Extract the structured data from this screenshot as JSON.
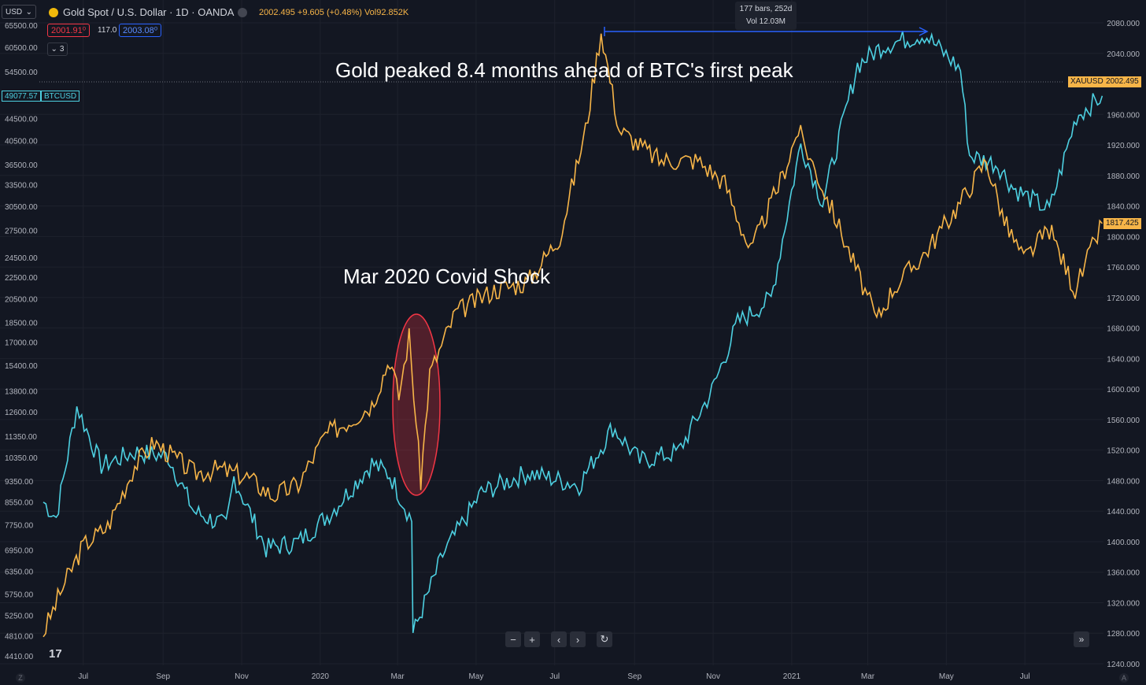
{
  "header": {
    "currency": "USD",
    "title": "Gold Spot / U.S. Dollar · 1D · OANDA",
    "quote": "2002.495 +9.605 (+0.48%) Vol92.852K",
    "sell_price": "2001.91⁰",
    "spread": "117.0",
    "buy_price": "2003.08⁰",
    "indicators_count": "3"
  },
  "annotations": {
    "peak_text": "Gold peaked 8.4 months ahead of BTC's first peak",
    "covid_text": "Mar 2020 Covid Shock",
    "measure_bars": "177 bars, 252d",
    "measure_vol": "Vol 12.03M"
  },
  "tags": {
    "btc_value": "49077.57",
    "btc_symbol": "BTCUSD",
    "xau_symbol": "XAUUSD",
    "xau_value": "2002.495",
    "last_value": "1817.425"
  },
  "colors": {
    "gold": "#f7b548",
    "btc": "#4dd0e1",
    "measure": "#2962ff",
    "highlight": "#f23645"
  },
  "nav_icons": [
    "minus-icon",
    "plus-icon",
    "chevron-left-icon",
    "chevron-right-icon",
    "reset-icon"
  ],
  "chart_data": {
    "type": "line",
    "title": "",
    "x_ticks": [
      "Jul",
      "Sep",
      "Nov",
      "2020",
      "Mar",
      "May",
      "Jul",
      "Sep",
      "Nov",
      "2021",
      "Mar",
      "May",
      "Jul"
    ],
    "left_axis": {
      "label": "",
      "scale": "log",
      "ticks": [
        "65500.00",
        "60500.00",
        "54500.00",
        "44500.00",
        "40500.00",
        "36500.00",
        "33500.00",
        "30500.00",
        "27500.00",
        "24500.00",
        "22500.00",
        "20500.00",
        "18500.00",
        "17000.00",
        "15400.00",
        "13800.00",
        "12600.00",
        "11350.00",
        "10350.00",
        "9350.00",
        "8550.00",
        "7750.00",
        "6950.00",
        "6350.00",
        "5750.00",
        "5250.00",
        "4810.00",
        "4410.00"
      ]
    },
    "right_axis": {
      "label": "",
      "ticks": [
        "2080.000",
        "2040.000",
        "1960.000",
        "1920.000",
        "1880.000",
        "1840.000",
        "1800.000",
        "1760.000",
        "1720.000",
        "1680.000",
        "1640.000",
        "1600.000",
        "1560.000",
        "1520.000",
        "1480.000",
        "1440.000",
        "1400.000",
        "1360.000",
        "1320.000",
        "1280.000",
        "1240.000"
      ],
      "ylim": [
        1240,
        2100
      ]
    },
    "series": [
      {
        "name": "XAUUSD",
        "axis": "right",
        "x": [
          "2019-05-31",
          "2019-06-15",
          "2019-07-01",
          "2019-07-20",
          "2019-08-10",
          "2019-08-25",
          "2019-09-10",
          "2019-09-25",
          "2019-10-15",
          "2019-11-05",
          "2019-11-25",
          "2019-12-15",
          "2020-01-05",
          "2020-01-25",
          "2020-02-10",
          "2020-02-24",
          "2020-03-02",
          "2020-03-10",
          "2020-03-19",
          "2020-03-26",
          "2020-04-15",
          "2020-05-15",
          "2020-06-10",
          "2020-07-05",
          "2020-07-25",
          "2020-08-06",
          "2020-08-20",
          "2020-09-20",
          "2020-10-20",
          "2020-11-10",
          "2020-11-30",
          "2020-12-25",
          "2021-01-06",
          "2021-02-05",
          "2021-03-08",
          "2021-03-20",
          "2021-04-15",
          "2021-05-10",
          "2021-06-01",
          "2021-06-15",
          "2021-06-30",
          "2021-07-20",
          "2021-08-09",
          "2021-08-30"
        ],
        "values": [
          1280,
          1340,
          1395,
          1420,
          1500,
          1530,
          1510,
          1490,
          1495,
          1485,
          1460,
          1475,
          1540,
          1560,
          1580,
          1640,
          1590,
          1670,
          1480,
          1620,
          1700,
          1730,
          1740,
          1800,
          1940,
          2070,
          1940,
          1900,
          1900,
          1870,
          1780,
          1880,
          1940,
          1820,
          1690,
          1730,
          1780,
          1840,
          1900,
          1820,
          1770,
          1810,
          1730,
          1817
        ]
      },
      {
        "name": "BTCUSD",
        "axis": "left",
        "x": [
          "2019-05-31",
          "2019-06-10",
          "2019-06-26",
          "2019-07-15",
          "2019-08-10",
          "2019-09-05",
          "2019-09-25",
          "2019-10-20",
          "2019-10-26",
          "2019-11-20",
          "2019-12-15",
          "2020-01-10",
          "2020-02-10",
          "2020-02-24",
          "2020-03-12",
          "2020-03-13",
          "2020-04-05",
          "2020-05-05",
          "2020-06-10",
          "2020-07-20",
          "2020-08-15",
          "2020-09-05",
          "2020-10-05",
          "2020-10-31",
          "2020-11-20",
          "2020-12-16",
          "2021-01-08",
          "2021-01-25",
          "2021-02-21",
          "2021-03-13",
          "2021-04-14",
          "2021-05-12",
          "2021-05-19",
          "2021-06-10",
          "2021-06-22",
          "2021-07-20",
          "2021-08-10",
          "2021-08-30"
        ],
        "values": [
          8550,
          8000,
          12900,
          10000,
          10600,
          10400,
          8200,
          7700,
          9500,
          7000,
          7200,
          8200,
          10100,
          9600,
          7900,
          4850,
          6800,
          8900,
          9700,
          9200,
          11800,
          10200,
          10600,
          13800,
          18500,
          20500,
          40000,
          31000,
          56000,
          61000,
          64000,
          55000,
          38000,
          36500,
          33000,
          30000,
          45000,
          49077
        ]
      }
    ],
    "measure": {
      "from": "2020-08-06",
      "to": "2021-04-14",
      "bars": 177,
      "days": 252,
      "volume": "12.03M"
    },
    "legend": "top-left"
  }
}
